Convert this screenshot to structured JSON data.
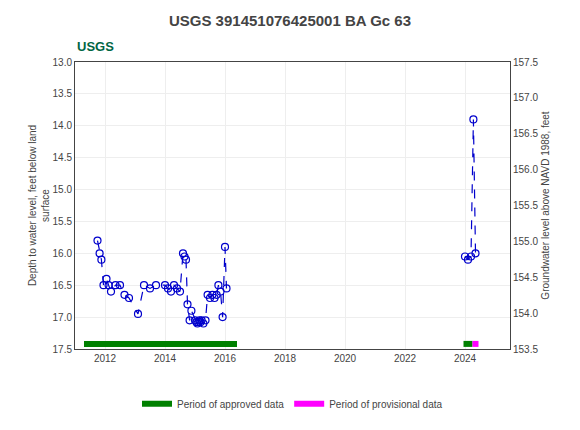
{
  "chart_data": {
    "type": "line",
    "title": "USGS 391451076425001 BA Gc 63",
    "annotations": [
      "USGS"
    ],
    "ylabel": "Depth to water level, feet below land\nsurface",
    "y2label": "Groundwater level above NAVD 1988, feet",
    "xlim": [
      2011.0,
      2025.5
    ],
    "xticks": [
      2012,
      2014,
      2016,
      2018,
      2020,
      2022,
      2024
    ],
    "ylim": [
      17.5,
      13.0
    ],
    "yticks": [
      {
        "value": 13.0,
        "label": "13.0"
      },
      13.5,
      {
        "value": 14.0,
        "label": "14.0"
      },
      14.5,
      {
        "value": 15.0,
        "label": "15.0"
      },
      15.5,
      {
        "value": 16.0,
        "label": "16.0"
      },
      16.5,
      {
        "value": 17.0,
        "label": "17.0"
      },
      17.5
    ],
    "y2lim": [
      153.5,
      157.5
    ],
    "y2ticks": [
      153.5,
      {
        "value": 154.0,
        "label": "154.0"
      },
      154.5,
      {
        "value": 155.0,
        "label": "155.0"
      },
      155.5,
      {
        "value": 156.0,
        "label": "156.0"
      },
      156.5,
      {
        "value": 157.0,
        "label": "157.0"
      },
      157.5
    ],
    "grid": true,
    "legend": "bottom",
    "series": [
      {
        "type": "line",
        "color": "#0000cc",
        "marker": "circle-open",
        "line_style": "dash",
        "x": [
          2011.75,
          2011.82,
          2011.88,
          2011.95,
          2012.05,
          2012.12,
          2012.2,
          2012.35,
          2012.5,
          2012.65,
          2012.8,
          2013.1,
          2013.3,
          2013.5,
          2013.7,
          2014.0,
          2014.1,
          2014.2,
          2014.3,
          2014.4,
          2014.5,
          2014.6,
          2014.65,
          2014.7,
          2014.75,
          2014.82,
          2014.88,
          2015.0,
          2015.05,
          2015.08,
          2015.12,
          2015.15,
          2015.18,
          2015.22,
          2015.28,
          2015.35,
          2015.42,
          2015.5,
          2015.58,
          2015.65,
          2015.72,
          2015.78,
          2015.85,
          2015.92,
          2016.0,
          2016.05,
          null,
          2024.0,
          2024.1,
          2024.2,
          2024.28,
          2024.35
        ],
        "values": [
          15.8,
          16.0,
          16.1,
          16.5,
          16.4,
          16.5,
          16.6,
          16.5,
          16.5,
          16.65,
          16.7,
          16.95,
          16.5,
          16.55,
          16.5,
          16.5,
          16.55,
          16.6,
          16.5,
          16.55,
          16.6,
          16.0,
          16.05,
          16.1,
          16.8,
          17.05,
          16.9,
          17.05,
          17.08,
          17.1,
          17.08,
          17.05,
          17.08,
          17.05,
          17.1,
          17.05,
          16.65,
          16.7,
          16.65,
          16.7,
          16.65,
          16.5,
          16.6,
          17.0,
          15.9,
          16.55,
          null,
          16.05,
          16.1,
          16.05,
          13.9,
          16.0
        ]
      },
      {
        "type": "period",
        "name": "Period of approved data",
        "color": "#008000",
        "x": [
          2011.3,
          2016.4,
          null,
          2023.95,
          2024.25
        ],
        "values": [
          17.42,
          17.42,
          null,
          17.42,
          17.42
        ]
      },
      {
        "type": "period",
        "name": "Period of provisional data",
        "color": "#ff00ff",
        "x": [
          2024.25,
          2024.45
        ],
        "values": [
          17.42,
          17.42
        ]
      }
    ]
  }
}
